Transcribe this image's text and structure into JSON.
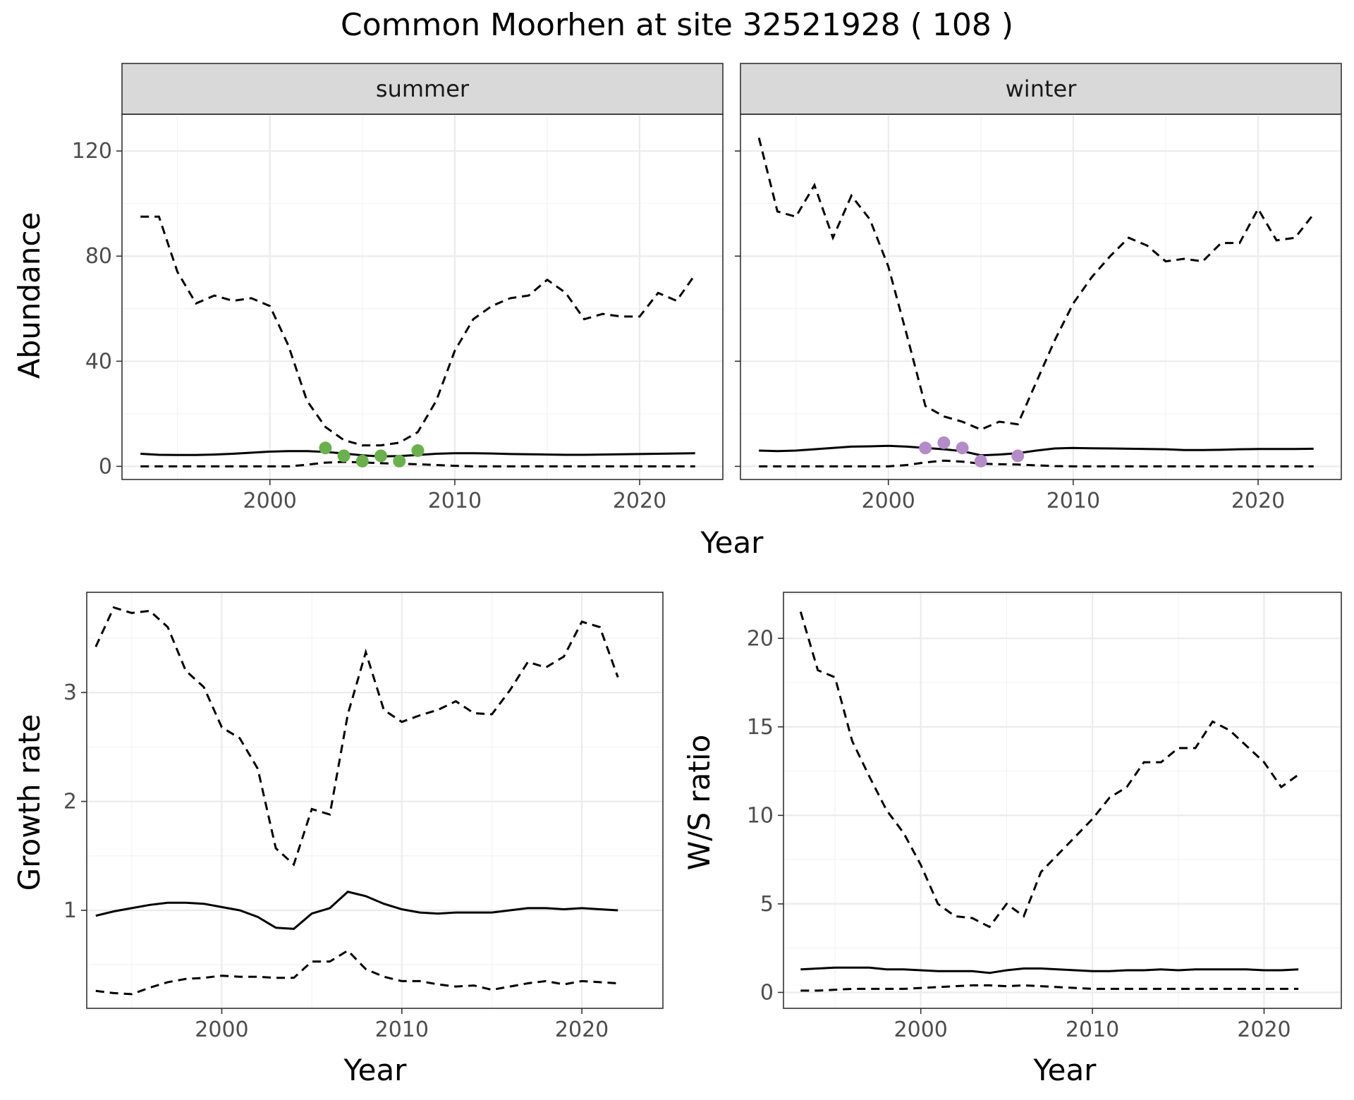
{
  "title": "Common Moorhen at site 32521928 ( 108 )",
  "colors": {
    "summer_points": "#6ab04c",
    "winter_points": "#b48cc8",
    "strip_bg": "#d9d9d9"
  },
  "chart_data": [
    {
      "type": "line",
      "facet": "summer",
      "xlabel": "Year",
      "ylabel": "Abundance",
      "xlim": [
        1992,
        2024.5
      ],
      "ylim": [
        -5,
        134
      ],
      "x_ticks": [
        2000,
        2010,
        2020
      ],
      "y_ticks": [
        0,
        40,
        80,
        120
      ],
      "series": [
        {
          "style": "solid",
          "x": [
            1993,
            1994,
            1995,
            1996,
            1997,
            1998,
            1999,
            2000,
            2001,
            2002,
            2003,
            2004,
            2005,
            2006,
            2007,
            2008,
            2009,
            2010,
            2011,
            2012,
            2013,
            2014,
            2015,
            2016,
            2017,
            2018,
            2019,
            2020,
            2021,
            2022,
            2023
          ],
          "y": [
            4.8,
            4.4,
            4.3,
            4.3,
            4.5,
            4.8,
            5.2,
            5.6,
            5.8,
            5.8,
            5.5,
            4.9,
            4.2,
            3.8,
            3.9,
            4.3,
            4.8,
            5.0,
            5.0,
            4.9,
            4.7,
            4.6,
            4.5,
            4.4,
            4.4,
            4.5,
            4.6,
            4.7,
            4.8,
            4.9,
            5.0
          ]
        },
        {
          "style": "dashed",
          "x": [
            1993,
            1994,
            1995,
            1996,
            1997,
            1998,
            1999,
            2000,
            2001,
            2002,
            2003,
            2004,
            2005,
            2006,
            2007,
            2008,
            2009,
            2010,
            2011,
            2012,
            2013,
            2014,
            2015,
            2016,
            2017,
            2018,
            2019,
            2020,
            2021,
            2022,
            2023
          ],
          "y": [
            95,
            95,
            74,
            62,
            65,
            63,
            64,
            61,
            46,
            25,
            15,
            10,
            8,
            8,
            9,
            13,
            25,
            44,
            56,
            61,
            64,
            65,
            71,
            66,
            56,
            58,
            57,
            57,
            66,
            63,
            73
          ]
        },
        {
          "style": "dashed",
          "x": [
            1993,
            1994,
            1995,
            1996,
            1997,
            1998,
            1999,
            2000,
            2001,
            2002,
            2003,
            2004,
            2005,
            2006,
            2007,
            2008,
            2009,
            2010,
            2011,
            2012,
            2013,
            2014,
            2015,
            2016,
            2017,
            2018,
            2019,
            2020,
            2021,
            2022,
            2023
          ],
          "y": [
            0,
            0,
            0,
            0,
            0,
            0,
            0,
            0,
            0,
            0.6,
            1.4,
            1.7,
            1.5,
            1.2,
            1.0,
            0.8,
            0.5,
            0.2,
            0,
            0,
            0,
            0,
            0,
            0,
            0,
            0,
            0,
            0,
            0,
            0,
            0
          ]
        }
      ],
      "points": {
        "x": [
          2003,
          2004,
          2005,
          2006,
          2007,
          2008
        ],
        "y": [
          7,
          4,
          2,
          4,
          2,
          6
        ]
      }
    },
    {
      "type": "line",
      "facet": "winter",
      "xlabel": "Year",
      "ylabel": "Abundance",
      "xlim": [
        1992,
        2024.5
      ],
      "ylim": [
        -5,
        134
      ],
      "x_ticks": [
        2000,
        2010,
        2020
      ],
      "y_ticks": [
        0,
        40,
        80,
        120
      ],
      "series": [
        {
          "style": "solid",
          "x": [
            1993,
            1994,
            1995,
            1996,
            1997,
            1998,
            1999,
            2000,
            2001,
            2002,
            2003,
            2004,
            2005,
            2006,
            2007,
            2008,
            2009,
            2010,
            2011,
            2012,
            2013,
            2014,
            2015,
            2016,
            2017,
            2018,
            2019,
            2020,
            2021,
            2022,
            2023
          ],
          "y": [
            6,
            5.8,
            6,
            6.5,
            7,
            7.5,
            7.6,
            7.8,
            7.5,
            7,
            6.5,
            5.8,
            4.2,
            4.5,
            5,
            6,
            6.8,
            7,
            6.9,
            6.8,
            6.7,
            6.6,
            6.5,
            6.2,
            6.2,
            6.3,
            6.5,
            6.6,
            6.6,
            6.6,
            6.7
          ]
        },
        {
          "style": "dashed",
          "x": [
            1993,
            1994,
            1995,
            1996,
            1997,
            1998,
            1999,
            2000,
            2001,
            2002,
            2003,
            2004,
            2005,
            2006,
            2007,
            2008,
            2009,
            2010,
            2011,
            2012,
            2013,
            2014,
            2015,
            2016,
            2017,
            2018,
            2019,
            2020,
            2021,
            2022,
            2023
          ],
          "y": [
            125,
            97,
            95,
            107,
            87,
            103,
            94,
            76,
            50,
            23,
            19,
            17,
            14,
            17,
            16,
            32,
            48,
            62,
            72,
            80,
            87,
            84,
            78,
            79,
            78,
            85,
            85,
            98,
            86,
            87,
            96
          ]
        },
        {
          "style": "dashed",
          "x": [
            1993,
            1994,
            1995,
            1996,
            1997,
            1998,
            1999,
            2000,
            2001,
            2002,
            2003,
            2004,
            2005,
            2006,
            2007,
            2008,
            2009,
            2010,
            2011,
            2012,
            2013,
            2014,
            2015,
            2016,
            2017,
            2018,
            2019,
            2020,
            2021,
            2022,
            2023
          ],
          "y": [
            0,
            0,
            0,
            0,
            0,
            0,
            0,
            0,
            0.5,
            1.5,
            2.2,
            1.8,
            1.0,
            0.8,
            0.7,
            0.4,
            0.1,
            0,
            0,
            0,
            0,
            0,
            0,
            0,
            0,
            0,
            0,
            0,
            0,
            0,
            0
          ]
        }
      ],
      "points": {
        "x": [
          2002,
          2003,
          2004,
          2005,
          2007
        ],
        "y": [
          7,
          9,
          7,
          2,
          4
        ]
      }
    },
    {
      "type": "line",
      "xlabel": "Year",
      "ylabel": "Growth rate",
      "xlim": [
        1992.5,
        2024.5
      ],
      "ylim": [
        0.1,
        3.92
      ],
      "x_ticks": [
        2000,
        2010,
        2020
      ],
      "y_ticks": [
        1,
        2,
        3
      ],
      "series": [
        {
          "style": "solid",
          "x": [
            1993,
            1994,
            1995,
            1996,
            1997,
            1998,
            1999,
            2000,
            2001,
            2002,
            2003,
            2004,
            2005,
            2006,
            2007,
            2008,
            2009,
            2010,
            2011,
            2012,
            2013,
            2014,
            2015,
            2016,
            2017,
            2018,
            2019,
            2020,
            2021,
            2022
          ],
          "y": [
            0.95,
            0.99,
            1.02,
            1.05,
            1.07,
            1.07,
            1.06,
            1.03,
            1.0,
            0.94,
            0.84,
            0.83,
            0.97,
            1.02,
            1.17,
            1.13,
            1.06,
            1.01,
            0.98,
            0.97,
            0.98,
            0.98,
            0.98,
            1.0,
            1.02,
            1.02,
            1.01,
            1.02,
            1.01,
            1.0
          ]
        },
        {
          "style": "dashed",
          "x": [
            1993,
            1994,
            1995,
            1996,
            1997,
            1998,
            1999,
            2000,
            2001,
            2002,
            2003,
            2004,
            2005,
            2006,
            2007,
            2008,
            2009,
            2010,
            2011,
            2012,
            2013,
            2014,
            2015,
            2016,
            2017,
            2018,
            2019,
            2020,
            2021,
            2022
          ],
          "y": [
            3.42,
            3.78,
            3.73,
            3.75,
            3.6,
            3.2,
            3.05,
            2.68,
            2.58,
            2.3,
            1.57,
            1.42,
            1.93,
            1.88,
            2.8,
            3.37,
            2.84,
            2.73,
            2.79,
            2.84,
            2.92,
            2.81,
            2.8,
            3.02,
            3.28,
            3.23,
            3.33,
            3.65,
            3.6,
            3.14
          ]
        },
        {
          "style": "dashed",
          "x": [
            1993,
            1994,
            1995,
            1996,
            1997,
            1998,
            1999,
            2000,
            2001,
            2002,
            2003,
            2004,
            2005,
            2006,
            2007,
            2008,
            2009,
            2010,
            2011,
            2012,
            2013,
            2014,
            2015,
            2016,
            2017,
            2018,
            2019,
            2020,
            2021,
            2022
          ],
          "y": [
            0.26,
            0.24,
            0.23,
            0.29,
            0.34,
            0.37,
            0.38,
            0.4,
            0.39,
            0.39,
            0.38,
            0.38,
            0.53,
            0.53,
            0.63,
            0.46,
            0.39,
            0.35,
            0.35,
            0.32,
            0.3,
            0.31,
            0.27,
            0.3,
            0.33,
            0.35,
            0.32,
            0.35,
            0.34,
            0.33
          ]
        }
      ]
    },
    {
      "type": "line",
      "xlabel": "Year",
      "ylabel": "W/S ratio",
      "xlim": [
        1992,
        2024.5
      ],
      "ylim": [
        -0.9,
        22.6
      ],
      "x_ticks": [
        2000,
        2010,
        2020
      ],
      "y_ticks": [
        0,
        5,
        10,
        15,
        20
      ],
      "series": [
        {
          "style": "solid",
          "x": [
            1993,
            1994,
            1995,
            1996,
            1997,
            1998,
            1999,
            2000,
            2001,
            2002,
            2003,
            2004,
            2005,
            2006,
            2007,
            2008,
            2009,
            2010,
            2011,
            2012,
            2013,
            2014,
            2015,
            2016,
            2017,
            2018,
            2019,
            2020,
            2021,
            2022
          ],
          "y": [
            1.3,
            1.35,
            1.4,
            1.4,
            1.4,
            1.3,
            1.3,
            1.25,
            1.2,
            1.2,
            1.2,
            1.1,
            1.25,
            1.35,
            1.35,
            1.3,
            1.25,
            1.2,
            1.2,
            1.25,
            1.25,
            1.3,
            1.25,
            1.3,
            1.3,
            1.3,
            1.3,
            1.25,
            1.25,
            1.3
          ]
        },
        {
          "style": "dashed",
          "x": [
            1993,
            1994,
            1995,
            1996,
            1997,
            1998,
            1999,
            2000,
            2001,
            2002,
            2003,
            2004,
            2005,
            2006,
            2007,
            2008,
            2009,
            2010,
            2011,
            2012,
            2013,
            2014,
            2015,
            2016,
            2017,
            2018,
            2019,
            2020,
            2021,
            2022
          ],
          "y": [
            21.5,
            18.2,
            17.8,
            14.2,
            12.2,
            10.3,
            9,
            7.2,
            5,
            4.3,
            4.2,
            3.7,
            5,
            4.3,
            6.8,
            7.8,
            8.8,
            9.8,
            11,
            11.6,
            13,
            13,
            13.8,
            13.8,
            15.3,
            14.8,
            13.9,
            13,
            11.6,
            12.3
          ]
        },
        {
          "style": "dashed",
          "x": [
            1993,
            1994,
            1995,
            1996,
            1997,
            1998,
            1999,
            2000,
            2001,
            2002,
            2003,
            2004,
            2005,
            2006,
            2007,
            2008,
            2009,
            2010,
            2011,
            2012,
            2013,
            2014,
            2015,
            2016,
            2017,
            2018,
            2019,
            2020,
            2021,
            2022
          ],
          "y": [
            0.1,
            0.1,
            0.15,
            0.2,
            0.2,
            0.2,
            0.2,
            0.25,
            0.3,
            0.35,
            0.4,
            0.4,
            0.35,
            0.4,
            0.35,
            0.3,
            0.25,
            0.2,
            0.2,
            0.2,
            0.2,
            0.2,
            0.2,
            0.2,
            0.2,
            0.2,
            0.2,
            0.2,
            0.2,
            0.2
          ]
        }
      ]
    }
  ]
}
